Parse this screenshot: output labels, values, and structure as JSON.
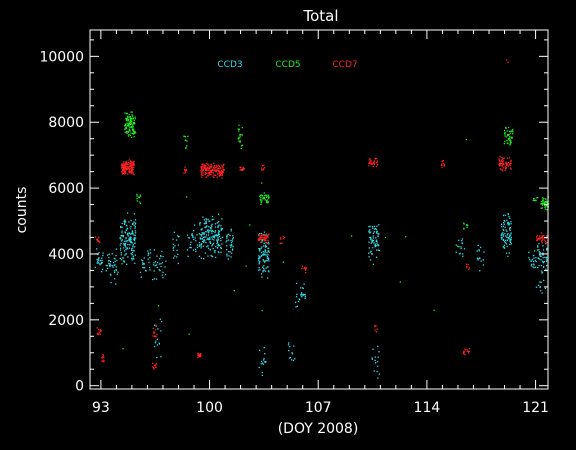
{
  "chart_data": {
    "type": "scatter",
    "title": "Total",
    "xlabel": "(DOY 2008)",
    "ylabel": "counts",
    "xlim": [
      92.3,
      121.8
    ],
    "ylim": [
      -100,
      10800
    ],
    "x_ticks": [
      93,
      100,
      107,
      114,
      121
    ],
    "y_ticks": [
      0,
      2000,
      4000,
      6000,
      8000,
      10000
    ],
    "grid": false,
    "legend_position": "top-center",
    "series": [
      {
        "name": "CCD3",
        "color": "#33dde8",
        "clusters": [
          {
            "x": [
              92.6,
              93.1
            ],
            "y": [
              3300,
              4400
            ],
            "n": 25
          },
          {
            "x": [
              93.3,
              94.1
            ],
            "y": [
              3000,
              4300
            ],
            "n": 40
          },
          {
            "x": [
              94.2,
              95.2
            ],
            "y": [
              3600,
              5300
            ],
            "n": 150
          },
          {
            "x": [
              95.5,
              96.2
            ],
            "y": [
              3200,
              4300
            ],
            "n": 25
          },
          {
            "x": [
              96.3,
              97.2
            ],
            "y": [
              3200,
              4300
            ],
            "n": 30
          },
          {
            "x": [
              96.4,
              96.9
            ],
            "y": [
              600,
              2200
            ],
            "n": 15
          },
          {
            "x": [
              97.6,
              98.0
            ],
            "y": [
              3700,
              4800
            ],
            "n": 18
          },
          {
            "x": [
              98.5,
              99.2
            ],
            "y": [
              3800,
              5000
            ],
            "n": 25
          },
          {
            "x": [
              99.3,
              100.8
            ],
            "y": [
              3800,
              5300
            ],
            "n": 170
          },
          {
            "x": [
              101.0,
              101.5
            ],
            "y": [
              3800,
              5000
            ],
            "n": 35
          },
          {
            "x": [
              103.1,
              103.8
            ],
            "y": [
              3200,
              4800
            ],
            "n": 90
          },
          {
            "x": [
              103.1,
              103.6
            ],
            "y": [
              300,
              1400
            ],
            "n": 15
          },
          {
            "x": [
              105.5,
              106.2
            ],
            "y": [
              2300,
              3200
            ],
            "n": 25
          },
          {
            "x": [
              105.0,
              105.5
            ],
            "y": [
              700,
              1600
            ],
            "n": 12
          },
          {
            "x": [
              110.2,
              110.9
            ],
            "y": [
              3800,
              5000
            ],
            "n": 70
          },
          {
            "x": [
              110.4,
              110.9
            ],
            "y": [
              200,
              1500
            ],
            "n": 15
          },
          {
            "x": [
              115.8,
              116.4
            ],
            "y": [
              3800,
              4600
            ],
            "n": 15
          },
          {
            "x": [
              117.2,
              117.7
            ],
            "y": [
              3400,
              4300
            ],
            "n": 15
          },
          {
            "x": [
              118.7,
              119.4
            ],
            "y": [
              3900,
              5300
            ],
            "n": 80
          },
          {
            "x": [
              120.5,
              121.0
            ],
            "y": [
              3400,
              4200
            ],
            "n": 20
          },
          {
            "x": [
              121.0,
              121.7
            ],
            "y": [
              3300,
              4400
            ],
            "n": 45
          },
          {
            "x": [
              121.0,
              121.6
            ],
            "y": [
              2800,
              3400
            ],
            "n": 10
          }
        ]
      },
      {
        "name": "CCD5",
        "color": "#22ee22",
        "clusters": [
          {
            "x": [
              94.5,
              95.2
            ],
            "y": [
              7500,
              8400
            ],
            "n": 110
          },
          {
            "x": [
              95.2,
              95.7
            ],
            "y": [
              5500,
              6000
            ],
            "n": 10
          },
          {
            "x": [
              98.3,
              98.6
            ],
            "y": [
              7100,
              7700
            ],
            "n": 10
          },
          {
            "x": [
              101.8,
              102.1
            ],
            "y": [
              7100,
              8000
            ],
            "n": 20
          },
          {
            "x": [
              103.2,
              103.8
            ],
            "y": [
              5500,
              5900
            ],
            "n": 35
          },
          {
            "x": [
              116.3,
              116.6
            ],
            "y": [
              4700,
              5000
            ],
            "n": 8
          },
          {
            "x": [
              118.9,
              119.5
            ],
            "y": [
              7300,
              7900
            ],
            "n": 45
          },
          {
            "x": [
              120.8,
              121.1
            ],
            "y": [
              5500,
              5800
            ],
            "n": 8
          },
          {
            "x": [
              121.3,
              121.8
            ],
            "y": [
              5300,
              5800
            ],
            "n": 45
          },
          {
            "x": [
              93.0,
              121.0
            ],
            "y": [
              0,
              8000
            ],
            "n": 20
          }
        ]
      },
      {
        "name": "CCD7",
        "color": "#ff2222",
        "clusters": [
          {
            "x": [
              92.6,
              92.9
            ],
            "y": [
              4300,
              4600
            ],
            "n": 10
          },
          {
            "x": [
              92.7,
              93.0
            ],
            "y": [
              1500,
              1900
            ],
            "n": 12
          },
          {
            "x": [
              93.0,
              93.2
            ],
            "y": [
              700,
              1000
            ],
            "n": 10
          },
          {
            "x": [
              94.3,
              95.1
            ],
            "y": [
              6400,
              6900
            ],
            "n": 130
          },
          {
            "x": [
              96.3,
              96.6
            ],
            "y": [
              1400,
              1900
            ],
            "n": 12
          },
          {
            "x": [
              96.3,
              96.6
            ],
            "y": [
              500,
              800
            ],
            "n": 10
          },
          {
            "x": [
              98.3,
              98.5
            ],
            "y": [
              6400,
              6700
            ],
            "n": 10
          },
          {
            "x": [
              99.2,
              99.4
            ],
            "y": [
              850,
              1050
            ],
            "n": 25
          },
          {
            "x": [
              99.4,
              100.9
            ],
            "y": [
              6300,
              6800
            ],
            "n": 160
          },
          {
            "x": [
              101.9,
              102.2
            ],
            "y": [
              6500,
              6700
            ],
            "n": 15
          },
          {
            "x": [
              103.1,
              103.8
            ],
            "y": [
              4300,
              4700
            ],
            "n": 45
          },
          {
            "x": [
              103.3,
              103.5
            ],
            "y": [
              6500,
              6800
            ],
            "n": 8
          },
          {
            "x": [
              104.5,
              104.8
            ],
            "y": [
              4300,
              4600
            ],
            "n": 8
          },
          {
            "x": [
              105.9,
              106.2
            ],
            "y": [
              3400,
              3700
            ],
            "n": 10
          },
          {
            "x": [
              110.2,
              110.8
            ],
            "y": [
              6600,
              7000
            ],
            "n": 30
          },
          {
            "x": [
              110.5,
              110.8
            ],
            "y": [
              1600,
              1900
            ],
            "n": 6
          },
          {
            "x": [
              114.9,
              115.1
            ],
            "y": [
              6600,
              6900
            ],
            "n": 12
          },
          {
            "x": [
              116.3,
              116.7
            ],
            "y": [
              900,
              1200
            ],
            "n": 15
          },
          {
            "x": [
              116.4,
              116.7
            ],
            "y": [
              3500,
              3800
            ],
            "n": 6
          },
          {
            "x": [
              118.6,
              119.4
            ],
            "y": [
              6500,
              7000
            ],
            "n": 60
          },
          {
            "x": [
              121.0,
              121.7
            ],
            "y": [
              4300,
              4700
            ],
            "n": 35
          },
          {
            "x": [
              119.0,
              119.2
            ],
            "y": [
              9800,
              9950
            ],
            "n": 2
          }
        ]
      }
    ]
  }
}
